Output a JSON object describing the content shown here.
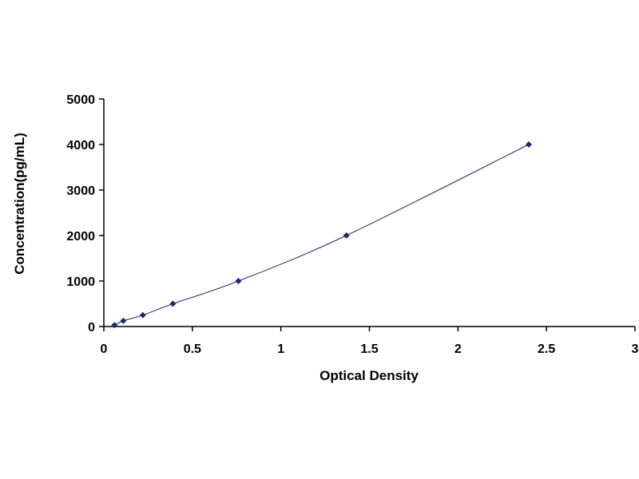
{
  "chart_data": {
    "type": "scatter",
    "title": "",
    "xlabel": "Optical Density",
    "ylabel": "Concentration(pg/mL)",
    "xlim": [
      0,
      3
    ],
    "ylim": [
      0,
      5000
    ],
    "x_ticks": [
      "0",
      "0.5",
      "1",
      "1.5",
      "2",
      "2.5",
      "3"
    ],
    "y_ticks": [
      "0",
      "1000",
      "2000",
      "3000",
      "4000",
      "5000"
    ],
    "grid": false,
    "legend": "none",
    "trendline": "smooth curve through points",
    "series": [
      {
        "marker": "diamond",
        "color": "#1f2a6b",
        "x": [
          0.06,
          0.11,
          0.22,
          0.39,
          0.76,
          1.37,
          2.4
        ],
        "y": [
          31,
          125,
          250,
          500,
          1000,
          2000,
          4000
        ]
      }
    ]
  }
}
